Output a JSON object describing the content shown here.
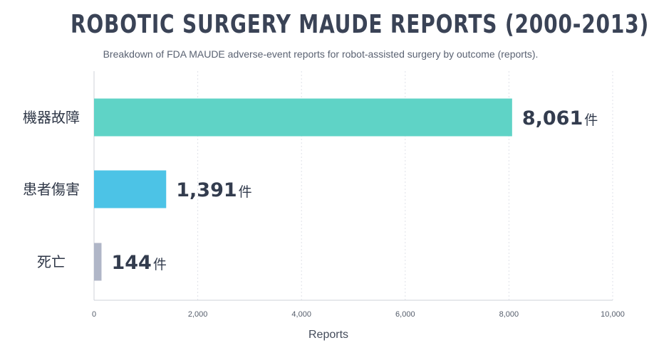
{
  "chart_data": {
    "type": "bar",
    "orientation": "horizontal",
    "title": "ROBOTIC SURGERY MAUDE REPORTS (2000-2013)",
    "subtitle": "Breakdown of FDA MAUDE adverse-event reports for robot-assisted surgery by outcome (reports).",
    "categories": [
      "機器故障",
      "患者傷害",
      "死亡"
    ],
    "values": [
      8061,
      1391,
      144
    ],
    "value_labels": [
      "8,061",
      "1,391",
      "144"
    ],
    "value_suffix": "件",
    "colors": [
      "#5fd3c6",
      "#4cc3e6",
      "#b0b6c7"
    ],
    "xlabel": "Reports",
    "ylabel": "",
    "xlim": [
      0,
      10000
    ],
    "xticks": [
      0,
      2000,
      4000,
      6000,
      8000,
      10000
    ],
    "xtick_labels": [
      "0",
      "2,000",
      "4,000",
      "6,000",
      "8,000",
      "10,000"
    ],
    "grid": "vertical-dashed",
    "legend": "none"
  }
}
